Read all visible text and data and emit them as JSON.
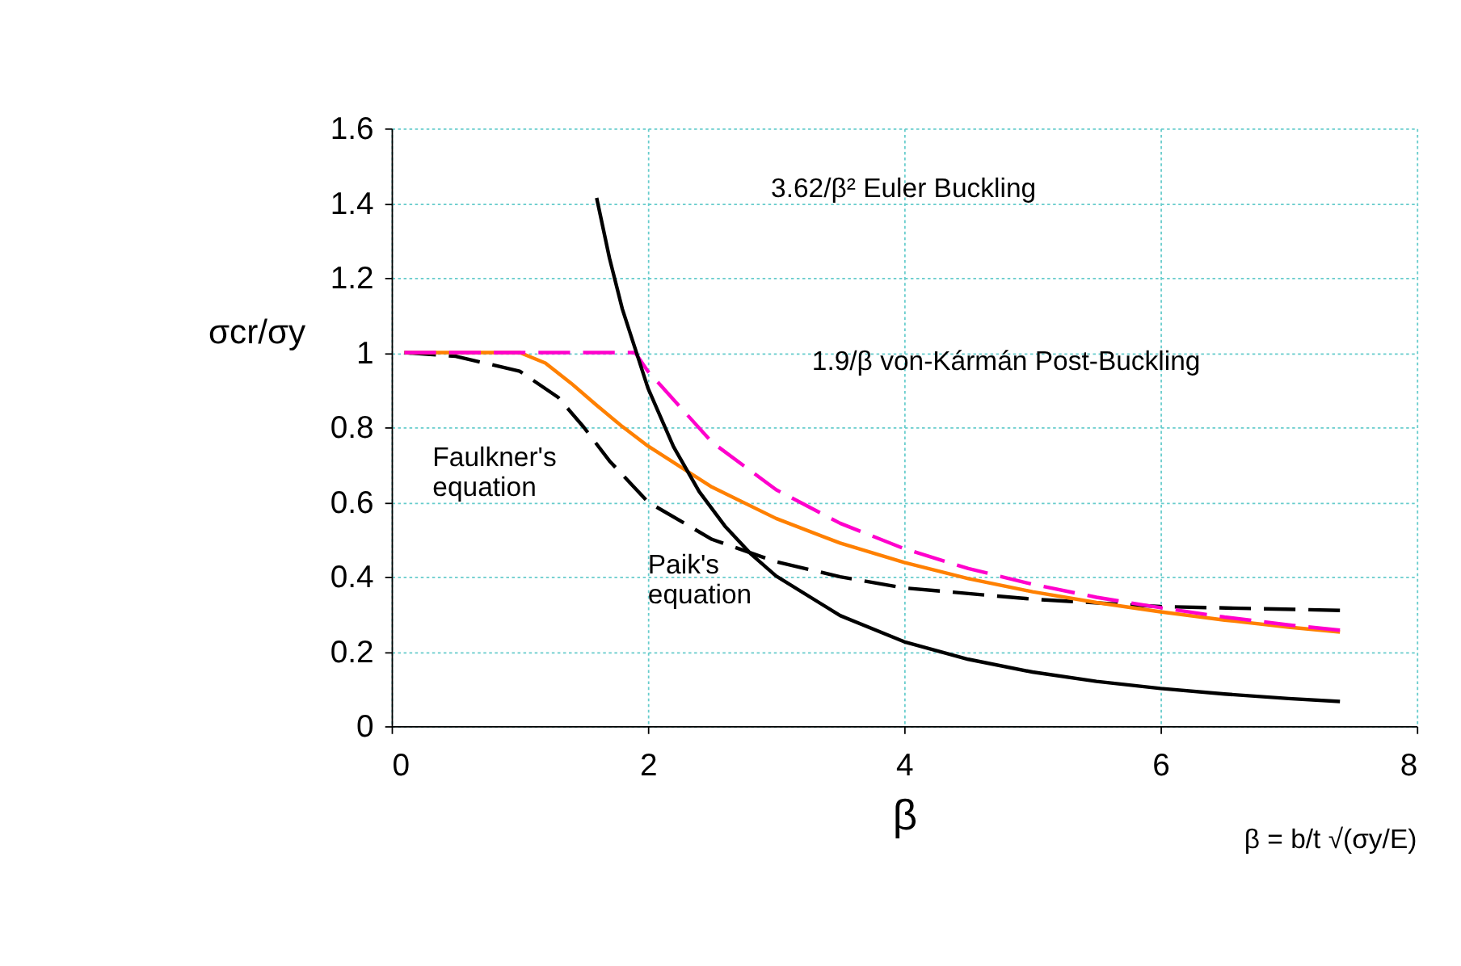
{
  "chart_data": {
    "type": "line",
    "xlabel": "β",
    "ylabel": "σcr/σy",
    "xlim": [
      0,
      8
    ],
    "ylim": [
      0,
      1.6
    ],
    "xticks": [
      0,
      2,
      4,
      6,
      8
    ],
    "yticks": [
      0,
      0.2,
      0.4,
      0.6,
      0.8,
      1,
      1.2,
      1.4,
      1.6
    ],
    "grid": true,
    "marker": "none",
    "series": [
      {
        "color": "#000000",
        "line_style": "solid",
        "x": [
          1.6,
          1.7,
          1.8,
          2,
          2.2,
          2.4,
          2.6,
          2.8,
          3,
          3.5,
          4,
          4.5,
          5,
          5.5,
          6,
          6.5,
          7,
          7.4
        ],
        "values": [
          1.414,
          1.253,
          1.117,
          0.905,
          0.748,
          0.628,
          0.536,
          0.462,
          0.402,
          0.296,
          0.226,
          0.179,
          0.145,
          0.12,
          0.101,
          0.086,
          0.074,
          0.066
        ]
      },
      {
        "color": "#ff00cc",
        "line_style": "dashed",
        "x": [
          0.1,
          1.9,
          2,
          2.5,
          3,
          3.5,
          4,
          4.5,
          5,
          5.5,
          6,
          6.5,
          7,
          7.4
        ],
        "values": [
          1,
          1,
          0.95,
          0.76,
          0.633,
          0.543,
          0.475,
          0.422,
          0.38,
          0.345,
          0.317,
          0.292,
          0.271,
          0.257
        ]
      },
      {
        "color": "#ff8000",
        "line_style": "solid",
        "x": [
          0.1,
          1,
          1.2,
          1.4,
          1.6,
          1.8,
          2,
          2.5,
          3,
          3.5,
          4,
          4.5,
          5,
          5.5,
          6,
          6.5,
          7,
          7.4
        ],
        "values": [
          1,
          1,
          0.972,
          0.918,
          0.859,
          0.802,
          0.75,
          0.64,
          0.556,
          0.49,
          0.438,
          0.395,
          0.36,
          0.331,
          0.306,
          0.284,
          0.265,
          0.252
        ]
      },
      {
        "color": "#000000",
        "line_style": "dashed",
        "x": [
          0.1,
          0.5,
          1,
          1.3,
          1.5,
          1.7,
          2,
          2.5,
          3,
          3.5,
          4,
          5,
          6,
          7.4
        ],
        "values": [
          1,
          0.99,
          0.95,
          0.88,
          0.8,
          0.71,
          0.6,
          0.5,
          0.44,
          0.4,
          0.37,
          0.34,
          0.32,
          0.31
        ]
      }
    ],
    "annotations": [
      "3.62/β²   Euler Buckling",
      "1.9/β   von-Kármán Post-Buckling",
      "Faulkner's\nequation",
      "Paik's\nequation",
      "β = b/t √(σy/E)"
    ]
  }
}
